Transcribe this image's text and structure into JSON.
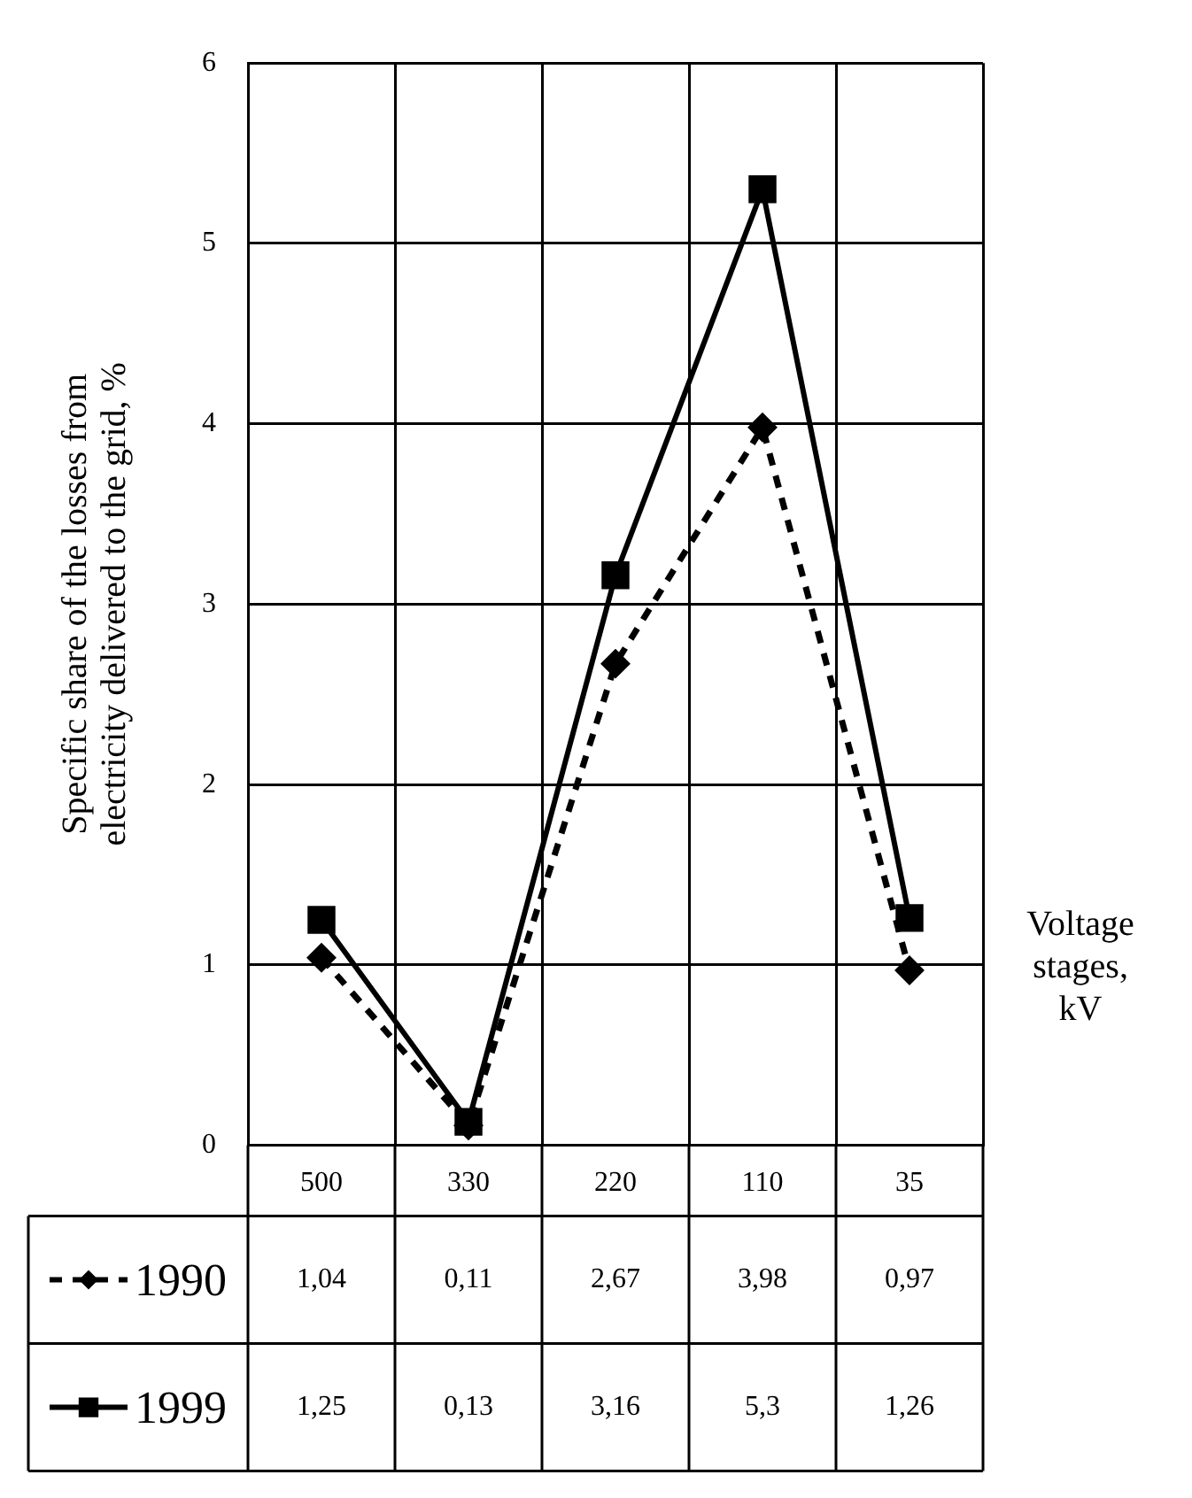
{
  "chart_data": {
    "type": "line",
    "ylabel": "Specific share of the losses from electricity delivered to the grid, %",
    "xlabel": "Voltage stages, kV",
    "categories": [
      "500",
      "330",
      "220",
      "110",
      "35"
    ],
    "series": [
      {
        "name": "1990",
        "color": "#000000",
        "marker": "diamond",
        "line_style": "dashed",
        "values": [
          1.04,
          0.11,
          2.67,
          3.98,
          0.97
        ],
        "value_labels": [
          "1,04",
          "0,11",
          "2,67",
          "3,98",
          "0,97"
        ]
      },
      {
        "name": "1999",
        "color": "#000000",
        "marker": "square",
        "line_style": "solid",
        "values": [
          1.25,
          0.13,
          3.16,
          5.3,
          1.26
        ],
        "value_labels": [
          "1,25",
          "0,13",
          "3,16",
          "5,3",
          "1,26"
        ]
      }
    ],
    "ylim": [
      0,
      6
    ],
    "yticks": [
      0,
      1,
      2,
      3,
      4,
      5,
      6
    ],
    "grid": true,
    "legend": "bottom left"
  }
}
